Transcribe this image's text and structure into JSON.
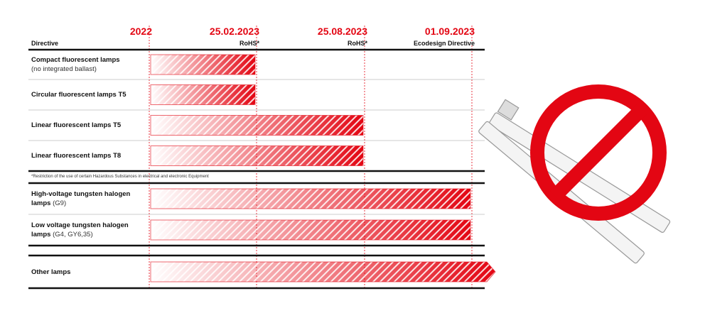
{
  "header": {
    "columns": [
      {
        "date": "2022",
        "label": "Directive"
      },
      {
        "date": "25.02.2023",
        "label": "RoHS*"
      },
      {
        "date": "25.08.2023",
        "label": "RoHS*"
      },
      {
        "date": "01.09.2023",
        "label": "Ecodesign Directive"
      }
    ]
  },
  "rows": [
    {
      "name": "Compact fluorescent lamps",
      "detail": "(no integrated ballast)"
    },
    {
      "name": "Circular fluorescent lamps T5"
    },
    {
      "name": "Linear fluorescent lamps T5"
    },
    {
      "name": "Linear fluorescent lamps T8"
    },
    {
      "name": "High-voltage tungsten halogen lamps",
      "detail": "(G9)"
    },
    {
      "name": "Low voltage tungsten halogen lamps",
      "detail": "(G4, GY6,35)"
    },
    {
      "name": "Other lamps"
    }
  ],
  "footnote": "*Restriction of the use of certain Hazardous Substances in electrical and electronic Equipment"
}
